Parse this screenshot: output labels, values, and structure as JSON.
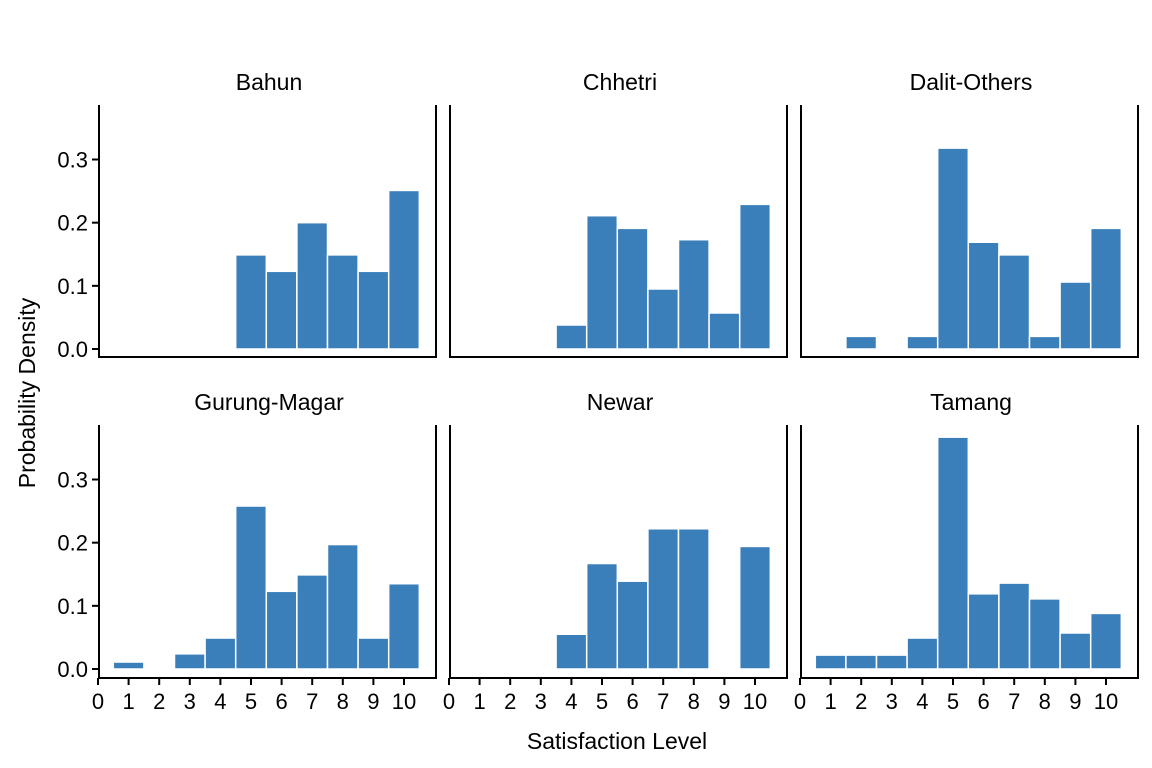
{
  "chart_data": {
    "type": "bar",
    "xlabel": "Satisfaction Level",
    "ylabel": "Probability  Density",
    "x_ticks": [
      0,
      1,
      2,
      3,
      4,
      5,
      6,
      7,
      8,
      9,
      10
    ],
    "y_ticks": [
      0.0,
      0.1,
      0.2,
      0.3
    ],
    "y_tick_labels": [
      "0.0",
      "0.1",
      "0.2",
      "0.3"
    ],
    "xlim": [
      0,
      11
    ],
    "ylim": [
      -0.02,
      0.385
    ],
    "bar_color": "#3A7FBA",
    "grid": false,
    "panels": [
      {
        "name": "Bahun",
        "values": [
          0,
          0,
          0,
          0,
          0,
          0.149,
          0.123,
          0.2,
          0.149,
          0.123,
          0.251
        ]
      },
      {
        "name": "Chhetri",
        "values": [
          0,
          0,
          0,
          0,
          0.038,
          0.211,
          0.191,
          0.095,
          0.173,
          0.057,
          0.229
        ]
      },
      {
        "name": "Dalit-Others",
        "values": [
          0,
          0,
          0.02,
          0,
          0.02,
          0.318,
          0.169,
          0.149,
          0.02,
          0.106,
          0.191
        ]
      },
      {
        "name": "Gurung-Magar",
        "values": [
          0,
          0.011,
          0,
          0.024,
          0.049,
          0.258,
          0.123,
          0.149,
          0.197,
          0.049,
          0.135
        ]
      },
      {
        "name": "Newar",
        "values": [
          0,
          0,
          0,
          0,
          0.055,
          0.167,
          0.139,
          0.222,
          0.222,
          0,
          0.194
        ]
      },
      {
        "name": "Tamang",
        "values": [
          0,
          0.022,
          0.022,
          0.022,
          0.049,
          0.367,
          0.119,
          0.136,
          0.111,
          0.057,
          0.088
        ]
      }
    ]
  }
}
